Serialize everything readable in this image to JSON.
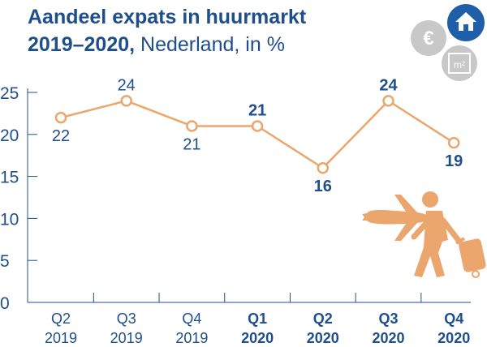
{
  "title": {
    "line1": "Aandeel expats in huurmarkt",
    "line2_bold": "2019–2020,",
    "line2_light": " Nederland, in %"
  },
  "badges": {
    "house_icon": "house-icon",
    "euro_label": "€",
    "m2_label": "m²"
  },
  "colors": {
    "title": "#1f4e8c",
    "line": "#eba66e",
    "axis": "#1f4e8c",
    "badge_blue": "#1f5fa8",
    "badge_grey": "#c8c8c8",
    "illustration": "#eba66e"
  },
  "chart_data": {
    "type": "line",
    "title": "Aandeel expats in huurmarkt 2019–2020, Nederland, in %",
    "xlabel": "",
    "ylabel": "",
    "ylim": [
      0,
      25
    ],
    "yticks": [
      "0",
      "5",
      "10",
      "15",
      "20",
      "25"
    ],
    "grid": false,
    "categories": [
      {
        "q": "Q2",
        "y": "2019",
        "bold": false
      },
      {
        "q": "Q3",
        "y": "2019",
        "bold": false
      },
      {
        "q": "Q4",
        "y": "2019",
        "bold": false
      },
      {
        "q": "Q1",
        "y": "2020",
        "bold": true
      },
      {
        "q": "Q2",
        "y": "2020",
        "bold": true
      },
      {
        "q": "Q3",
        "y": "2020",
        "bold": true
      },
      {
        "q": "Q4",
        "y": "2020",
        "bold": true
      }
    ],
    "values": [
      22,
      24,
      21,
      21,
      16,
      24,
      19
    ],
    "data_labels": [
      "22",
      "24",
      "21",
      "21",
      "16",
      "24",
      "19"
    ],
    "label_position": [
      "below",
      "above",
      "below",
      "above",
      "below",
      "above",
      "below"
    ]
  }
}
